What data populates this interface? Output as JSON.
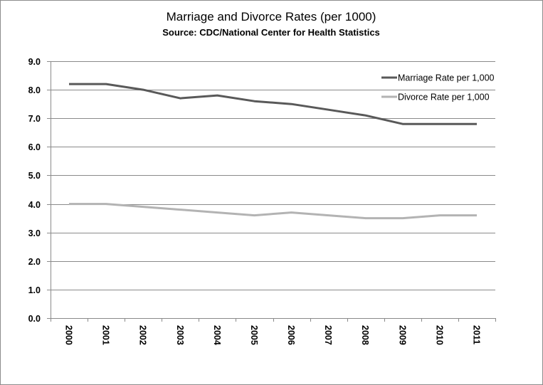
{
  "chart_data": {
    "type": "line",
    "title": "Marriage and Divorce Rates (per 1000)",
    "subtitle": "Source: CDC/National Center for Health Statistics",
    "xlabel": "",
    "ylabel": "",
    "categories": [
      "2000",
      "2001",
      "2002",
      "2003",
      "2004",
      "2005",
      "2006",
      "2007",
      "2008",
      "2009",
      "2010",
      "2011"
    ],
    "series": [
      {
        "name": "Marriage Rate per 1,000",
        "color": "#595959",
        "values": [
          8.2,
          8.2,
          8.0,
          7.7,
          7.8,
          7.6,
          7.5,
          7.3,
          7.1,
          6.8,
          6.8,
          6.8
        ]
      },
      {
        "name": "Divorce Rate per 1,000",
        "color": "#b3b3b3",
        "values": [
          4.0,
          4.0,
          3.9,
          3.8,
          3.7,
          3.6,
          3.7,
          3.6,
          3.5,
          3.5,
          3.6,
          3.6
        ]
      }
    ],
    "ylim": [
      0,
      9
    ],
    "y_ticks": [
      "0.0",
      "1.0",
      "2.0",
      "3.0",
      "4.0",
      "5.0",
      "6.0",
      "7.0",
      "8.0",
      "9.0"
    ],
    "grid": true,
    "legend_position": "top-right"
  }
}
